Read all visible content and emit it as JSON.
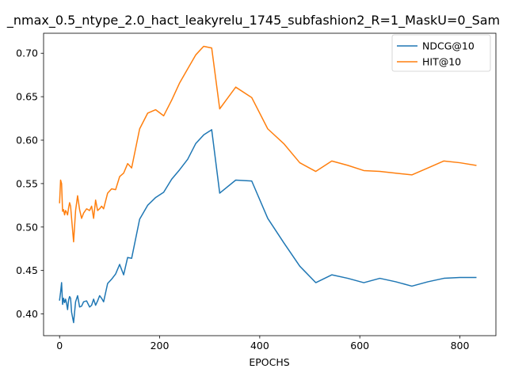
{
  "chart_data": {
    "type": "line",
    "title": "_nmax_0.5_ntype_2.0_hact_leakyrelu_1745_subfashion2_R=1_MaskU=0_Sam",
    "xlabel": "EPOCHS",
    "ylabel": "",
    "xlim": [
      -32,
      872
    ],
    "ylim": [
      0.375,
      0.723
    ],
    "xticks": [
      0,
      200,
      400,
      600,
      800
    ],
    "xtick_labels": [
      "0",
      "200",
      "400",
      "600",
      "800"
    ],
    "yticks": [
      0.4,
      0.45,
      0.5,
      0.55,
      0.6,
      0.65,
      0.7
    ],
    "ytick_labels": [
      "0.40",
      "0.45",
      "0.50",
      "0.55",
      "0.60",
      "0.65",
      "0.70"
    ],
    "grid": false,
    "legend_position": "top-right",
    "series": [
      {
        "name": "NDCG@10",
        "color": "#1f77b4",
        "x": [
          0,
          2,
          4,
          6,
          8,
          10,
          12,
          14,
          16,
          18,
          20,
          22,
          24,
          28,
          32,
          36,
          40,
          44,
          48,
          54,
          60,
          64,
          68,
          72,
          76,
          80,
          84,
          88,
          96,
          104,
          112,
          120,
          128,
          136,
          144,
          160,
          176,
          192,
          208,
          224,
          240,
          256,
          272,
          288,
          304,
          320,
          352,
          384,
          416,
          448,
          480,
          512,
          544,
          576,
          608,
          640,
          672,
          704,
          736,
          768,
          800,
          832
        ],
        "y": [
          0.416,
          0.425,
          0.436,
          0.411,
          0.418,
          0.413,
          0.417,
          0.412,
          0.405,
          0.416,
          0.42,
          0.418,
          0.402,
          0.39,
          0.414,
          0.421,
          0.408,
          0.409,
          0.414,
          0.415,
          0.408,
          0.41,
          0.417,
          0.41,
          0.415,
          0.421,
          0.418,
          0.414,
          0.435,
          0.44,
          0.446,
          0.457,
          0.445,
          0.465,
          0.464,
          0.509,
          0.525,
          0.534,
          0.54,
          0.555,
          0.566,
          0.578,
          0.596,
          0.606,
          0.612,
          0.539,
          0.554,
          0.553,
          0.51,
          0.482,
          0.455,
          0.436,
          0.445,
          0.441,
          0.436,
          0.441,
          0.437,
          0.432,
          0.437,
          0.441,
          0.442,
          0.442
        ]
      },
      {
        "name": "HIT@10",
        "color": "#ff7f0e",
        "x": [
          0,
          2,
          4,
          6,
          8,
          10,
          12,
          14,
          16,
          18,
          20,
          22,
          24,
          28,
          32,
          36,
          40,
          44,
          48,
          54,
          60,
          64,
          68,
          72,
          76,
          80,
          84,
          88,
          96,
          104,
          112,
          120,
          128,
          136,
          144,
          160,
          176,
          192,
          208,
          224,
          240,
          256,
          272,
          288,
          304,
          320,
          352,
          384,
          416,
          448,
          480,
          512,
          544,
          576,
          608,
          640,
          672,
          704,
          736,
          768,
          800,
          832
        ],
        "y": [
          0.528,
          0.554,
          0.55,
          0.518,
          0.52,
          0.514,
          0.519,
          0.517,
          0.514,
          0.522,
          0.528,
          0.524,
          0.51,
          0.483,
          0.519,
          0.536,
          0.52,
          0.51,
          0.516,
          0.521,
          0.519,
          0.524,
          0.51,
          0.531,
          0.519,
          0.521,
          0.524,
          0.521,
          0.539,
          0.544,
          0.543,
          0.558,
          0.562,
          0.573,
          0.568,
          0.613,
          0.631,
          0.635,
          0.628,
          0.646,
          0.666,
          0.682,
          0.698,
          0.708,
          0.706,
          0.636,
          0.661,
          0.649,
          0.613,
          0.596,
          0.574,
          0.564,
          0.576,
          0.571,
          0.565,
          0.564,
          0.562,
          0.56,
          0.568,
          0.576,
          0.574,
          0.571
        ]
      }
    ]
  }
}
